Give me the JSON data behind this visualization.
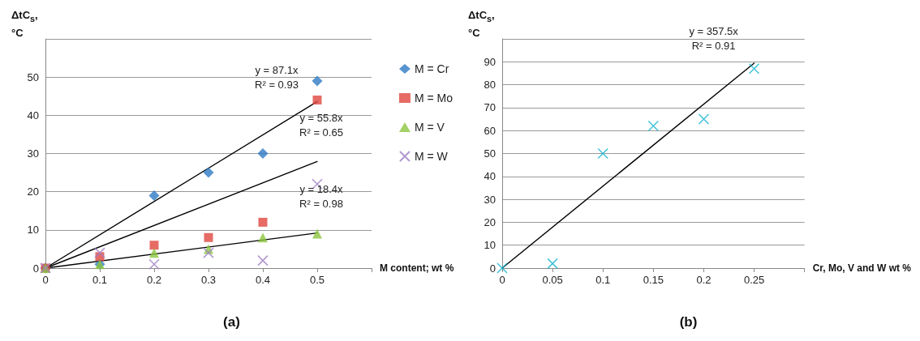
{
  "chart_data": [
    {
      "type": "scatter",
      "title": "(a)",
      "xlabel": "M content; wt %",
      "ylabel": "ΔtC$_{s}$, °C",
      "xlim": [
        0,
        0.6
      ],
      "xticks": [
        0,
        0.1,
        0.2,
        0.3,
        0.4,
        0.5,
        {
          "value": 0.6,
          "label": null
        }
      ],
      "ylim": [
        0,
        60
      ],
      "yticks": [
        0,
        10,
        20,
        30,
        40,
        50,
        {
          "value": 60,
          "label": null
        }
      ],
      "grid": "y",
      "legend": "right",
      "x": [
        0,
        0.1,
        0.2,
        0.3,
        0.4,
        0.5
      ],
      "series": [
        {
          "name": "M = Cr",
          "color": "#2e7bc4",
          "marker": "diamond",
          "values": [
            0,
            1,
            19,
            25,
            30,
            49
          ]
        },
        {
          "name": "M = Mo",
          "color": "#e0463f",
          "marker": "square",
          "values": [
            0,
            3,
            6,
            8,
            12,
            44
          ]
        },
        {
          "name": "M = V",
          "color": "#8cc63f",
          "marker": "triangle",
          "values": [
            0,
            1,
            4,
            5,
            8,
            9
          ]
        },
        {
          "name": "M = W",
          "color": "#9e7fc4",
          "marker": "cross",
          "values": [
            0,
            4,
            1,
            4,
            2,
            22
          ]
        },
        {
          "type": "line",
          "color": "#000000",
          "marker": "none",
          "x": [
            0,
            0.5
          ],
          "values": [
            0,
            43.6
          ]
        },
        {
          "type": "line",
          "color": "#000000",
          "marker": "none",
          "x": [
            0,
            0.5
          ],
          "values": [
            0,
            27.9
          ]
        },
        {
          "type": "line",
          "color": "#000000",
          "marker": "none",
          "x": [
            0,
            0.5
          ],
          "values": [
            0,
            9.2
          ]
        }
      ],
      "annotations": [
        "y = 87.1x\nR² = 0.93",
        "y = 55.8x\nR² = 0.65",
        "y = 18.4x\nR² = 0.98"
      ]
    },
    {
      "type": "scatter",
      "title": "(b)",
      "xlabel": "Cr, Mo, V and W wt %",
      "ylabel": "ΔtC$_{s}$, °C",
      "xlim": [
        0,
        0.3
      ],
      "xticks": [
        0,
        0.05,
        0.1,
        0.15,
        0.2,
        0.25,
        {
          "value": 0.3,
          "label": null
        }
      ],
      "ylim": [
        0,
        100
      ],
      "yticks": [
        0,
        10,
        20,
        30,
        40,
        50,
        60,
        70,
        80,
        90,
        {
          "value": 100,
          "label": null
        }
      ],
      "grid": "y",
      "x": [
        0,
        0.05,
        0.1,
        0.15,
        0.2,
        0.25
      ],
      "series": [
        {
          "color": "#1ab5d1",
          "marker": "cross",
          "values": [
            0,
            2,
            50,
            62,
            65,
            87
          ]
        },
        {
          "type": "line",
          "color": "#000000",
          "marker": "none",
          "x": [
            0,
            0.25
          ],
          "values": [
            0,
            89.4
          ]
        }
      ],
      "annotations": [
        "y = 357.5x\nR² = 0.91"
      ]
    }
  ]
}
